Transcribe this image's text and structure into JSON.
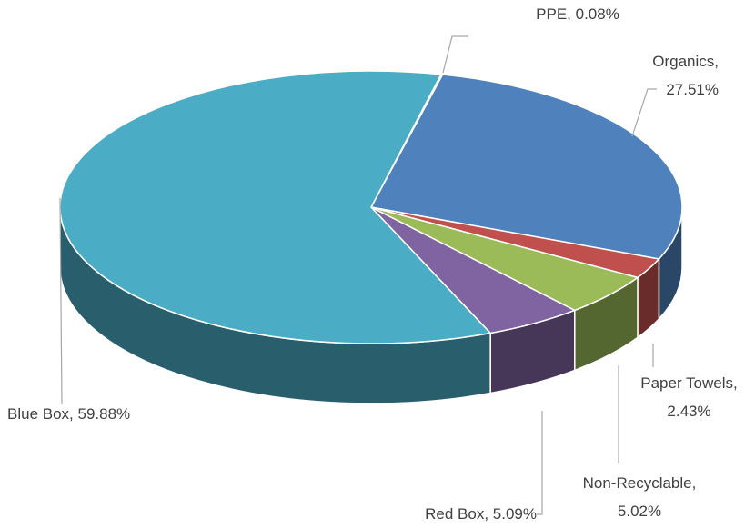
{
  "chart_data": {
    "type": "pie",
    "labels": [
      "PPE, 0.08%",
      "Organics, 27.51%",
      "Paper Towels, 2.43%",
      "Non-Recyclable, 5.02%",
      "Red Box, 5.09%",
      "Blue Box, 59.88%"
    ],
    "values": [
      0.08,
      27.51,
      2.43,
      5.02,
      5.09,
      59.88
    ],
    "colors": [
      "#4bacc6",
      "#4f81bd",
      "#c0504d",
      "#9bbb59",
      "#8064a2",
      "#4bacc6"
    ]
  }
}
